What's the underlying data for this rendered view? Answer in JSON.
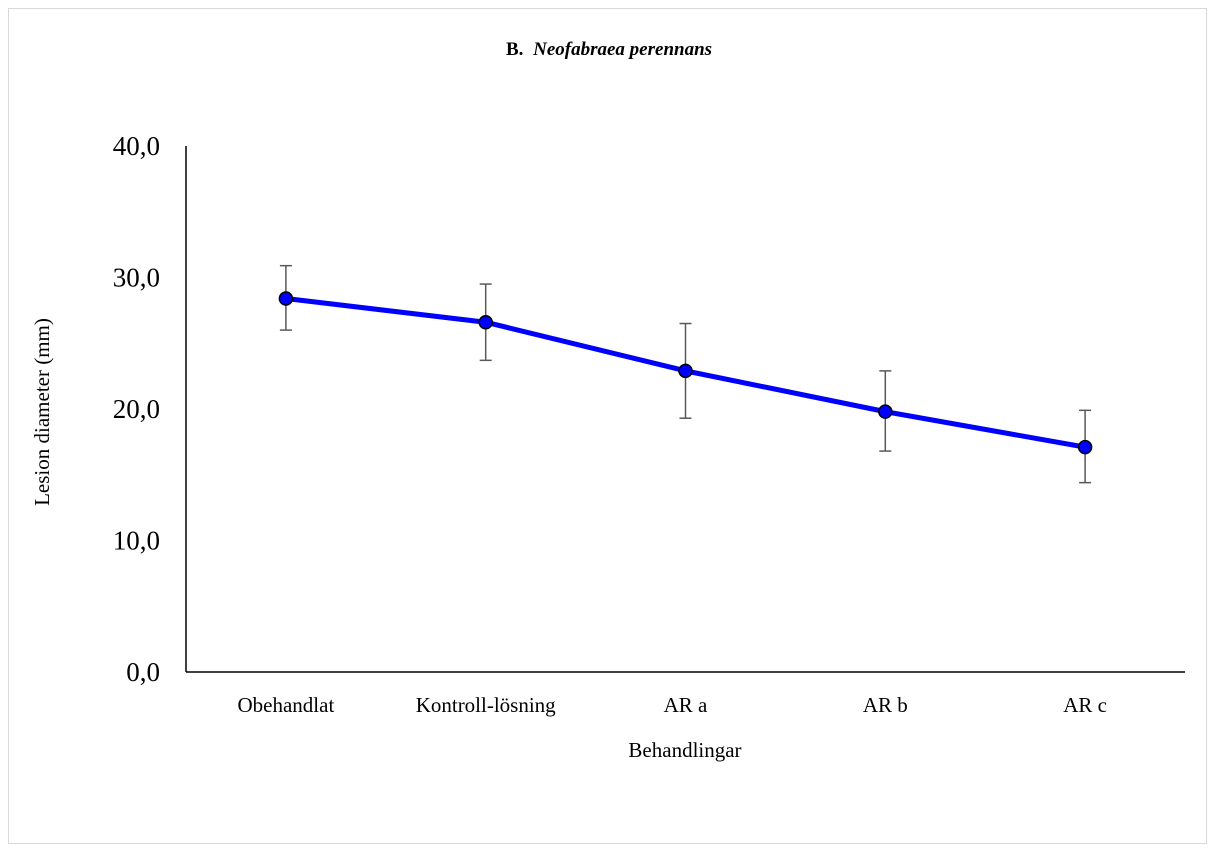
{
  "chart_data": {
    "type": "line",
    "title_prefix": "B.",
    "title_species": "Neofabraea perennans",
    "xlabel": "Behandlingar",
    "ylabel": "Lesion diameter (mm)",
    "categories": [
      "Obehandlat",
      "Kontroll-lösning",
      "AR a",
      "AR b",
      "AR c"
    ],
    "ylim": [
      0,
      40
    ],
    "yticks": [
      "0,0",
      "10,0",
      "20,0",
      "30,0",
      "40,0"
    ],
    "ytick_values": [
      0,
      10,
      20,
      30,
      40
    ],
    "series": [
      {
        "values": [
          28.4,
          26.6,
          22.9,
          19.8,
          17.1
        ],
        "error_low": [
          26.0,
          23.7,
          19.3,
          16.8,
          14.4
        ],
        "error_high": [
          30.9,
          29.5,
          26.5,
          22.9,
          19.9
        ]
      }
    ],
    "colors": {
      "line": "#0000ff",
      "marker_fill": "#0000ff",
      "marker_edge": "#000000",
      "error_bar": "#595959",
      "axis": "#000000"
    },
    "grid": false,
    "legend": "none"
  }
}
